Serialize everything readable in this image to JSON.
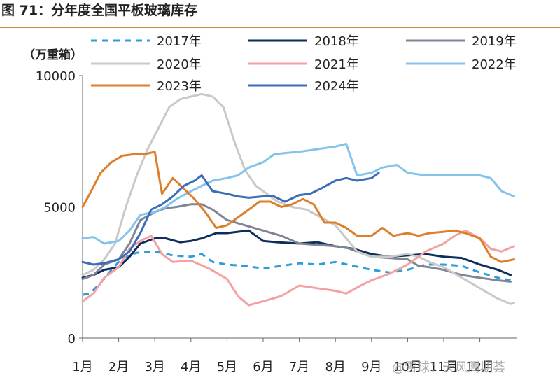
{
  "header": {
    "title": "图 71：分年度全国平板玻璃库存"
  },
  "watermark": "@雪球：天风周期荟",
  "chart_data": {
    "type": "line",
    "ylabel": "（万重箱）",
    "ylim": [
      0,
      10000
    ],
    "yticks": [
      0,
      5000,
      10000
    ],
    "xlim": [
      1,
      12.95
    ],
    "xticks": [
      {
        "value": 1,
        "label": "1月"
      },
      {
        "value": 2,
        "label": "2月"
      },
      {
        "value": 3,
        "label": "3月"
      },
      {
        "value": 4,
        "label": "4月"
      },
      {
        "value": 5,
        "label": "5月"
      },
      {
        "value": 6,
        "label": "6月"
      },
      {
        "value": 7,
        "label": "7月"
      },
      {
        "value": 8,
        "label": "8月"
      },
      {
        "value": 9,
        "label": "9月"
      },
      {
        "value": 10,
        "label": "10月"
      },
      {
        "value": 11,
        "label": "11月"
      },
      {
        "value": 12,
        "label": "12月"
      }
    ],
    "legend_position": "top",
    "series": [
      {
        "name": "2017年",
        "color": "#2f9ed8",
        "dash": true,
        "points": [
          [
            1,
            1650
          ],
          [
            1.2,
            1700
          ],
          [
            1.5,
            2100
          ],
          [
            1.8,
            2600
          ],
          [
            2.1,
            3050
          ],
          [
            2.5,
            3250
          ],
          [
            3,
            3300
          ],
          [
            3.5,
            3150
          ],
          [
            4,
            3100
          ],
          [
            4.3,
            3200
          ],
          [
            4.6,
            2900
          ],
          [
            5,
            2800
          ],
          [
            5.5,
            2750
          ],
          [
            6,
            2650
          ],
          [
            6.5,
            2750
          ],
          [
            7,
            2850
          ],
          [
            7.5,
            2800
          ],
          [
            8,
            2900
          ],
          [
            8.5,
            2750
          ],
          [
            9,
            2600
          ],
          [
            9.5,
            2500
          ],
          [
            10,
            2600
          ],
          [
            10.5,
            2800
          ],
          [
            11,
            2800
          ],
          [
            11.5,
            2750
          ],
          [
            12,
            2500
          ],
          [
            12.5,
            2300
          ],
          [
            12.85,
            2200
          ]
        ]
      },
      {
        "name": "2018年",
        "color": "#0d2d5a",
        "dash": false,
        "points": [
          [
            1,
            2300
          ],
          [
            1.3,
            2400
          ],
          [
            1.6,
            2600
          ],
          [
            2,
            2700
          ],
          [
            2.3,
            3100
          ],
          [
            2.6,
            3600
          ],
          [
            3,
            3800
          ],
          [
            3.3,
            3800
          ],
          [
            3.7,
            3650
          ],
          [
            4,
            3700
          ],
          [
            4.3,
            3800
          ],
          [
            4.7,
            4000
          ],
          [
            5,
            4000
          ],
          [
            5.3,
            4050
          ],
          [
            5.6,
            4100
          ],
          [
            6,
            3700
          ],
          [
            6.4,
            3650
          ],
          [
            7,
            3600
          ],
          [
            7.5,
            3650
          ],
          [
            8,
            3500
          ],
          [
            8.5,
            3400
          ],
          [
            9,
            3200
          ],
          [
            9.5,
            3100
          ],
          [
            10,
            3150
          ],
          [
            10.5,
            3200
          ],
          [
            11,
            3100
          ],
          [
            11.5,
            3050
          ],
          [
            12,
            2800
          ],
          [
            12.5,
            2600
          ],
          [
            12.85,
            2400
          ]
        ]
      },
      {
        "name": "2019年",
        "color": "#808596",
        "dash": false,
        "points": [
          [
            1,
            2250
          ],
          [
            1.3,
            2400
          ],
          [
            1.6,
            2800
          ],
          [
            2,
            3000
          ],
          [
            2.3,
            3600
          ],
          [
            2.6,
            4500
          ],
          [
            3,
            4800
          ],
          [
            3.3,
            4950
          ],
          [
            3.6,
            5000
          ],
          [
            4,
            5100
          ],
          [
            4.3,
            5100
          ],
          [
            4.6,
            4900
          ],
          [
            5,
            4500
          ],
          [
            5.5,
            4300
          ],
          [
            6,
            4100
          ],
          [
            6.5,
            3900
          ],
          [
            7,
            3600
          ],
          [
            7.5,
            3550
          ],
          [
            8,
            3500
          ],
          [
            8.3,
            3450
          ],
          [
            8.6,
            3300
          ],
          [
            9,
            3100
          ],
          [
            9.5,
            3050
          ],
          [
            10,
            3000
          ],
          [
            10.3,
            2750
          ],
          [
            10.6,
            2700
          ],
          [
            11,
            2600
          ],
          [
            11.5,
            2400
          ],
          [
            12,
            2300
          ],
          [
            12.5,
            2200
          ],
          [
            12.85,
            2150
          ]
        ]
      },
      {
        "name": "2020年",
        "color": "#c9c9c9",
        "dash": false,
        "points": [
          [
            1,
            2400
          ],
          [
            1.3,
            2600
          ],
          [
            1.6,
            3000
          ],
          [
            1.9,
            3600
          ],
          [
            2.2,
            5000
          ],
          [
            2.5,
            6200
          ],
          [
            2.8,
            7200
          ],
          [
            3.1,
            8000
          ],
          [
            3.4,
            8800
          ],
          [
            3.7,
            9100
          ],
          [
            4,
            9200
          ],
          [
            4.3,
            9300
          ],
          [
            4.6,
            9200
          ],
          [
            4.9,
            8800
          ],
          [
            5.2,
            7500
          ],
          [
            5.5,
            6400
          ],
          [
            5.8,
            5800
          ],
          [
            6.1,
            5500
          ],
          [
            6.4,
            5200
          ],
          [
            6.8,
            5000
          ],
          [
            7.2,
            4900
          ],
          [
            7.6,
            4600
          ],
          [
            8,
            4300
          ],
          [
            8.3,
            3800
          ],
          [
            8.6,
            3300
          ],
          [
            9,
            3100
          ],
          [
            9.5,
            3100
          ],
          [
            10,
            3200
          ],
          [
            10.3,
            3100
          ],
          [
            10.6,
            2900
          ],
          [
            11,
            2700
          ],
          [
            11.5,
            2300
          ],
          [
            12,
            1900
          ],
          [
            12.5,
            1500
          ],
          [
            12.85,
            1300
          ],
          [
            12.95,
            1350
          ]
        ]
      },
      {
        "name": "2021年",
        "color": "#f4a1a1",
        "dash": false,
        "points": [
          [
            1,
            1400
          ],
          [
            1.3,
            1700
          ],
          [
            1.6,
            2300
          ],
          [
            2,
            2700
          ],
          [
            2.3,
            3400
          ],
          [
            2.6,
            3700
          ],
          [
            2.9,
            3900
          ],
          [
            3.2,
            3200
          ],
          [
            3.5,
            2900
          ],
          [
            4,
            2950
          ],
          [
            4.5,
            2650
          ],
          [
            5,
            2250
          ],
          [
            5.3,
            1600
          ],
          [
            5.6,
            1250
          ],
          [
            6,
            1400
          ],
          [
            6.5,
            1600
          ],
          [
            7,
            2000
          ],
          [
            7.5,
            1900
          ],
          [
            8,
            1800
          ],
          [
            8.3,
            1700
          ],
          [
            8.7,
            2000
          ],
          [
            9,
            2200
          ],
          [
            9.5,
            2450
          ],
          [
            10,
            2800
          ],
          [
            10.5,
            3300
          ],
          [
            11,
            3600
          ],
          [
            11.3,
            3900
          ],
          [
            11.6,
            4100
          ],
          [
            12,
            3800
          ],
          [
            12.3,
            3400
          ],
          [
            12.6,
            3300
          ],
          [
            12.95,
            3500
          ]
        ]
      },
      {
        "name": "2022年",
        "color": "#84c3ea",
        "dash": false,
        "points": [
          [
            1,
            3800
          ],
          [
            1.3,
            3850
          ],
          [
            1.6,
            3600
          ],
          [
            2,
            3700
          ],
          [
            2.3,
            4100
          ],
          [
            2.6,
            4700
          ],
          [
            3,
            4800
          ],
          [
            3.3,
            5000
          ],
          [
            3.6,
            5300
          ],
          [
            4,
            5600
          ],
          [
            4.3,
            5800
          ],
          [
            4.6,
            6000
          ],
          [
            5,
            6100
          ],
          [
            5.3,
            6200
          ],
          [
            5.6,
            6500
          ],
          [
            6,
            6700
          ],
          [
            6.3,
            7000
          ],
          [
            6.6,
            7050
          ],
          [
            7,
            7100
          ],
          [
            7.5,
            7200
          ],
          [
            8,
            7300
          ],
          [
            8.3,
            7400
          ],
          [
            8.6,
            6200
          ],
          [
            9,
            6300
          ],
          [
            9.3,
            6500
          ],
          [
            9.7,
            6600
          ],
          [
            10,
            6300
          ],
          [
            10.5,
            6200
          ],
          [
            11,
            6200
          ],
          [
            11.5,
            6200
          ],
          [
            12,
            6200
          ],
          [
            12.3,
            6100
          ],
          [
            12.6,
            5600
          ],
          [
            12.95,
            5400
          ]
        ]
      },
      {
        "name": "2023年",
        "color": "#dd7f2a",
        "dash": false,
        "points": [
          [
            1,
            5000
          ],
          [
            1.2,
            5500
          ],
          [
            1.5,
            6300
          ],
          [
            1.8,
            6700
          ],
          [
            2.1,
            6950
          ],
          [
            2.4,
            7000
          ],
          [
            2.7,
            7000
          ],
          [
            3,
            7100
          ],
          [
            3.2,
            5500
          ],
          [
            3.5,
            6100
          ],
          [
            3.8,
            5700
          ],
          [
            4.1,
            5300
          ],
          [
            4.4,
            4800
          ],
          [
            4.7,
            4200
          ],
          [
            5,
            4300
          ],
          [
            5.3,
            4600
          ],
          [
            5.6,
            4900
          ],
          [
            5.9,
            5200
          ],
          [
            6.2,
            5200
          ],
          [
            6.5,
            5000
          ],
          [
            6.8,
            5100
          ],
          [
            7.1,
            5300
          ],
          [
            7.4,
            5100
          ],
          [
            7.7,
            4400
          ],
          [
            8,
            4400
          ],
          [
            8.3,
            4200
          ],
          [
            8.6,
            3900
          ],
          [
            9,
            3900
          ],
          [
            9.3,
            4200
          ],
          [
            9.6,
            3900
          ],
          [
            10,
            4000
          ],
          [
            10.3,
            3900
          ],
          [
            10.6,
            4000
          ],
          [
            11,
            4050
          ],
          [
            11.3,
            4100
          ],
          [
            11.6,
            4000
          ],
          [
            12,
            3800
          ],
          [
            12.3,
            3100
          ],
          [
            12.6,
            2900
          ],
          [
            12.95,
            3000
          ]
        ]
      },
      {
        "name": "2024年",
        "color": "#3d6cb8",
        "dash": false,
        "points": [
          [
            1,
            2900
          ],
          [
            1.3,
            2800
          ],
          [
            1.6,
            2850
          ],
          [
            2,
            3000
          ],
          [
            2.3,
            3300
          ],
          [
            2.6,
            4000
          ],
          [
            2.9,
            4900
          ],
          [
            3.2,
            5100
          ],
          [
            3.5,
            5400
          ],
          [
            3.8,
            5800
          ],
          [
            4.1,
            6000
          ],
          [
            4.3,
            6200
          ],
          [
            4.6,
            5600
          ],
          [
            5,
            5500
          ],
          [
            5.3,
            5400
          ],
          [
            5.6,
            5350
          ],
          [
            6,
            5400
          ],
          [
            6.3,
            5400
          ],
          [
            6.6,
            5200
          ],
          [
            7,
            5450
          ],
          [
            7.3,
            5500
          ],
          [
            7.6,
            5700
          ],
          [
            8,
            6000
          ],
          [
            8.3,
            6100
          ],
          [
            8.6,
            6000
          ],
          [
            9,
            6100
          ],
          [
            9.2,
            6300
          ]
        ]
      }
    ]
  }
}
